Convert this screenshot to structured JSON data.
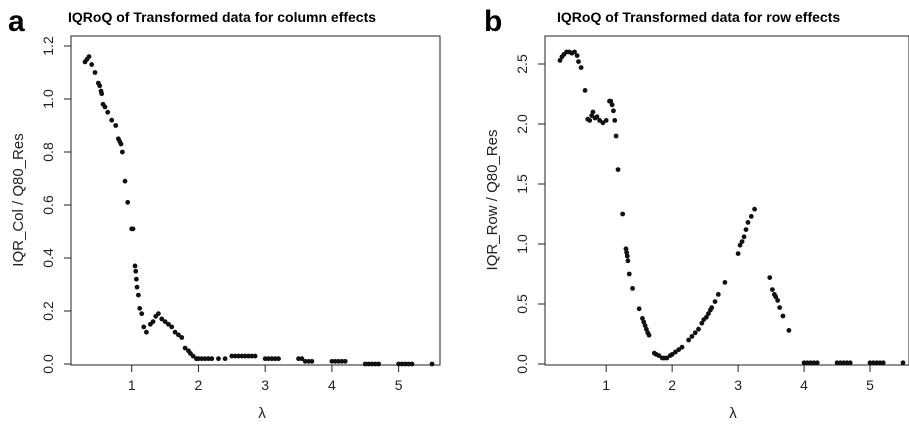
{
  "chart_data": [
    {
      "type": "scatter",
      "panel": "a",
      "title": "IQRoQ of Transformed data for column effects",
      "xlabel": "λ",
      "ylabel": "IQR_Col / Q80_Res",
      "xlim": [
        0.3,
        5.5
      ],
      "ylim": [
        0.0,
        1.2
      ],
      "xticks": [
        1,
        2,
        3,
        4,
        5
      ],
      "yticks": [
        0.0,
        0.2,
        0.4,
        0.6,
        0.8,
        1.0,
        1.2
      ],
      "ytick_labels": [
        "0.0",
        "0.2",
        "0.4",
        "0.6",
        "0.8",
        "1.0",
        "1.2"
      ],
      "grid": false,
      "legend": "none",
      "points": [
        [
          0.3,
          1.14
        ],
        [
          0.33,
          1.15
        ],
        [
          0.36,
          1.16
        ],
        [
          0.4,
          1.13
        ],
        [
          0.45,
          1.1
        ],
        [
          0.5,
          1.06
        ],
        [
          0.52,
          1.05
        ],
        [
          0.54,
          1.03
        ],
        [
          0.55,
          1.02
        ],
        [
          0.57,
          0.98
        ],
        [
          0.6,
          0.97
        ],
        [
          0.64,
          0.95
        ],
        [
          0.7,
          0.92
        ],
        [
          0.76,
          0.9
        ],
        [
          0.8,
          0.85
        ],
        [
          0.82,
          0.84
        ],
        [
          0.84,
          0.83
        ],
        [
          0.86,
          0.8
        ],
        [
          0.9,
          0.69
        ],
        [
          0.94,
          0.61
        ],
        [
          1.0,
          0.51
        ],
        [
          1.02,
          0.51
        ],
        [
          1.05,
          0.37
        ],
        [
          1.06,
          0.35
        ],
        [
          1.07,
          0.32
        ],
        [
          1.08,
          0.29
        ],
        [
          1.1,
          0.26
        ],
        [
          1.12,
          0.21
        ],
        [
          1.15,
          0.19
        ],
        [
          1.18,
          0.14
        ],
        [
          1.22,
          0.12
        ],
        [
          1.28,
          0.15
        ],
        [
          1.32,
          0.16
        ],
        [
          1.36,
          0.18
        ],
        [
          1.4,
          0.19
        ],
        [
          1.45,
          0.17
        ],
        [
          1.5,
          0.16
        ],
        [
          1.55,
          0.15
        ],
        [
          1.6,
          0.14
        ],
        [
          1.65,
          0.12
        ],
        [
          1.7,
          0.11
        ],
        [
          1.75,
          0.1
        ],
        [
          1.8,
          0.06
        ],
        [
          1.85,
          0.05
        ],
        [
          1.88,
          0.04
        ],
        [
          1.92,
          0.03
        ],
        [
          1.97,
          0.02
        ],
        [
          2.0,
          0.02
        ],
        [
          2.05,
          0.02
        ],
        [
          2.1,
          0.02
        ],
        [
          2.15,
          0.02
        ],
        [
          2.2,
          0.02
        ],
        [
          2.3,
          0.02
        ],
        [
          2.4,
          0.02
        ],
        [
          2.5,
          0.03
        ],
        [
          2.55,
          0.03
        ],
        [
          2.6,
          0.03
        ],
        [
          2.65,
          0.03
        ],
        [
          2.7,
          0.03
        ],
        [
          2.75,
          0.03
        ],
        [
          2.8,
          0.03
        ],
        [
          2.85,
          0.03
        ],
        [
          3.0,
          0.02
        ],
        [
          3.05,
          0.02
        ],
        [
          3.1,
          0.02
        ],
        [
          3.15,
          0.02
        ],
        [
          3.2,
          0.02
        ],
        [
          3.5,
          0.02
        ],
        [
          3.55,
          0.02
        ],
        [
          3.6,
          0.01
        ],
        [
          3.65,
          0.01
        ],
        [
          3.7,
          0.01
        ],
        [
          4.0,
          0.01
        ],
        [
          4.05,
          0.01
        ],
        [
          4.1,
          0.01
        ],
        [
          4.15,
          0.01
        ],
        [
          4.2,
          0.01
        ],
        [
          4.5,
          0.0
        ],
        [
          4.55,
          0.0
        ],
        [
          4.6,
          0.0
        ],
        [
          4.65,
          0.0
        ],
        [
          4.7,
          0.0
        ],
        [
          5.0,
          0.0
        ],
        [
          5.05,
          0.0
        ],
        [
          5.1,
          0.0
        ],
        [
          5.15,
          0.0
        ],
        [
          5.2,
          0.0
        ],
        [
          5.5,
          0.0
        ]
      ]
    },
    {
      "type": "scatter",
      "panel": "b",
      "title": "IQRoQ of Transformed data for row effects",
      "xlabel": "λ",
      "ylabel": "IQR_Row / Q80_Res",
      "xlim": [
        0.3,
        5.5
      ],
      "ylim": [
        0.0,
        2.6
      ],
      "xticks": [
        1,
        2,
        3,
        4,
        5
      ],
      "yticks": [
        0.0,
        0.5,
        1.0,
        1.5,
        2.0,
        2.5
      ],
      "ytick_labels": [
        "0.0",
        "0.5",
        "1.0",
        "1.5",
        "2.0",
        "2.5"
      ],
      "grid": false,
      "legend": "none",
      "points": [
        [
          0.3,
          2.53
        ],
        [
          0.33,
          2.56
        ],
        [
          0.36,
          2.58
        ],
        [
          0.4,
          2.6
        ],
        [
          0.44,
          2.6
        ],
        [
          0.48,
          2.59
        ],
        [
          0.52,
          2.6
        ],
        [
          0.56,
          2.57
        ],
        [
          0.58,
          2.52
        ],
        [
          0.62,
          2.47
        ],
        [
          0.68,
          2.28
        ],
        [
          0.72,
          2.04
        ],
        [
          0.75,
          2.03
        ],
        [
          0.78,
          2.07
        ],
        [
          0.8,
          2.1
        ],
        [
          0.83,
          2.05
        ],
        [
          0.86,
          2.06
        ],
        [
          0.9,
          2.03
        ],
        [
          0.95,
          2.01
        ],
        [
          1.0,
          2.03
        ],
        [
          1.05,
          2.19
        ],
        [
          1.07,
          2.19
        ],
        [
          1.09,
          2.16
        ],
        [
          1.11,
          2.11
        ],
        [
          1.13,
          2.03
        ],
        [
          1.15,
          1.9
        ],
        [
          1.18,
          1.62
        ],
        [
          1.25,
          1.25
        ],
        [
          1.3,
          0.96
        ],
        [
          1.31,
          0.93
        ],
        [
          1.32,
          0.9
        ],
        [
          1.33,
          0.86
        ],
        [
          1.35,
          0.75
        ],
        [
          1.4,
          0.63
        ],
        [
          1.5,
          0.46
        ],
        [
          1.55,
          0.38
        ],
        [
          1.57,
          0.35
        ],
        [
          1.59,
          0.32
        ],
        [
          1.61,
          0.29
        ],
        [
          1.63,
          0.26
        ],
        [
          1.65,
          0.24
        ],
        [
          1.73,
          0.09
        ],
        [
          1.76,
          0.08
        ],
        [
          1.8,
          0.07
        ],
        [
          1.85,
          0.05
        ],
        [
          1.88,
          0.05
        ],
        [
          1.92,
          0.05
        ],
        [
          1.97,
          0.07
        ],
        [
          2.0,
          0.08
        ],
        [
          2.05,
          0.1
        ],
        [
          2.1,
          0.12
        ],
        [
          2.15,
          0.14
        ],
        [
          2.25,
          0.2
        ],
        [
          2.3,
          0.23
        ],
        [
          2.35,
          0.26
        ],
        [
          2.4,
          0.29
        ],
        [
          2.45,
          0.34
        ],
        [
          2.48,
          0.37
        ],
        [
          2.52,
          0.39
        ],
        [
          2.55,
          0.42
        ],
        [
          2.58,
          0.45
        ],
        [
          2.6,
          0.47
        ],
        [
          2.65,
          0.52
        ],
        [
          2.7,
          0.58
        ],
        [
          2.8,
          0.68
        ],
        [
          3.0,
          0.92
        ],
        [
          3.03,
          0.99
        ],
        [
          3.06,
          1.02
        ],
        [
          3.09,
          1.06
        ],
        [
          3.12,
          1.12
        ],
        [
          3.15,
          1.18
        ],
        [
          3.2,
          1.23
        ],
        [
          3.25,
          1.29
        ],
        [
          3.48,
          0.72
        ],
        [
          3.52,
          0.62
        ],
        [
          3.55,
          0.58
        ],
        [
          3.57,
          0.56
        ],
        [
          3.6,
          0.53
        ],
        [
          3.63,
          0.47
        ],
        [
          3.68,
          0.4
        ],
        [
          3.77,
          0.28
        ],
        [
          4.0,
          0.01
        ],
        [
          4.05,
          0.01
        ],
        [
          4.1,
          0.01
        ],
        [
          4.15,
          0.01
        ],
        [
          4.2,
          0.01
        ],
        [
          4.5,
          0.01
        ],
        [
          4.55,
          0.01
        ],
        [
          4.6,
          0.01
        ],
        [
          4.65,
          0.01
        ],
        [
          4.7,
          0.01
        ],
        [
          5.0,
          0.01
        ],
        [
          5.05,
          0.01
        ],
        [
          5.1,
          0.01
        ],
        [
          5.15,
          0.01
        ],
        [
          5.2,
          0.01
        ],
        [
          5.5,
          0.01
        ]
      ]
    }
  ]
}
